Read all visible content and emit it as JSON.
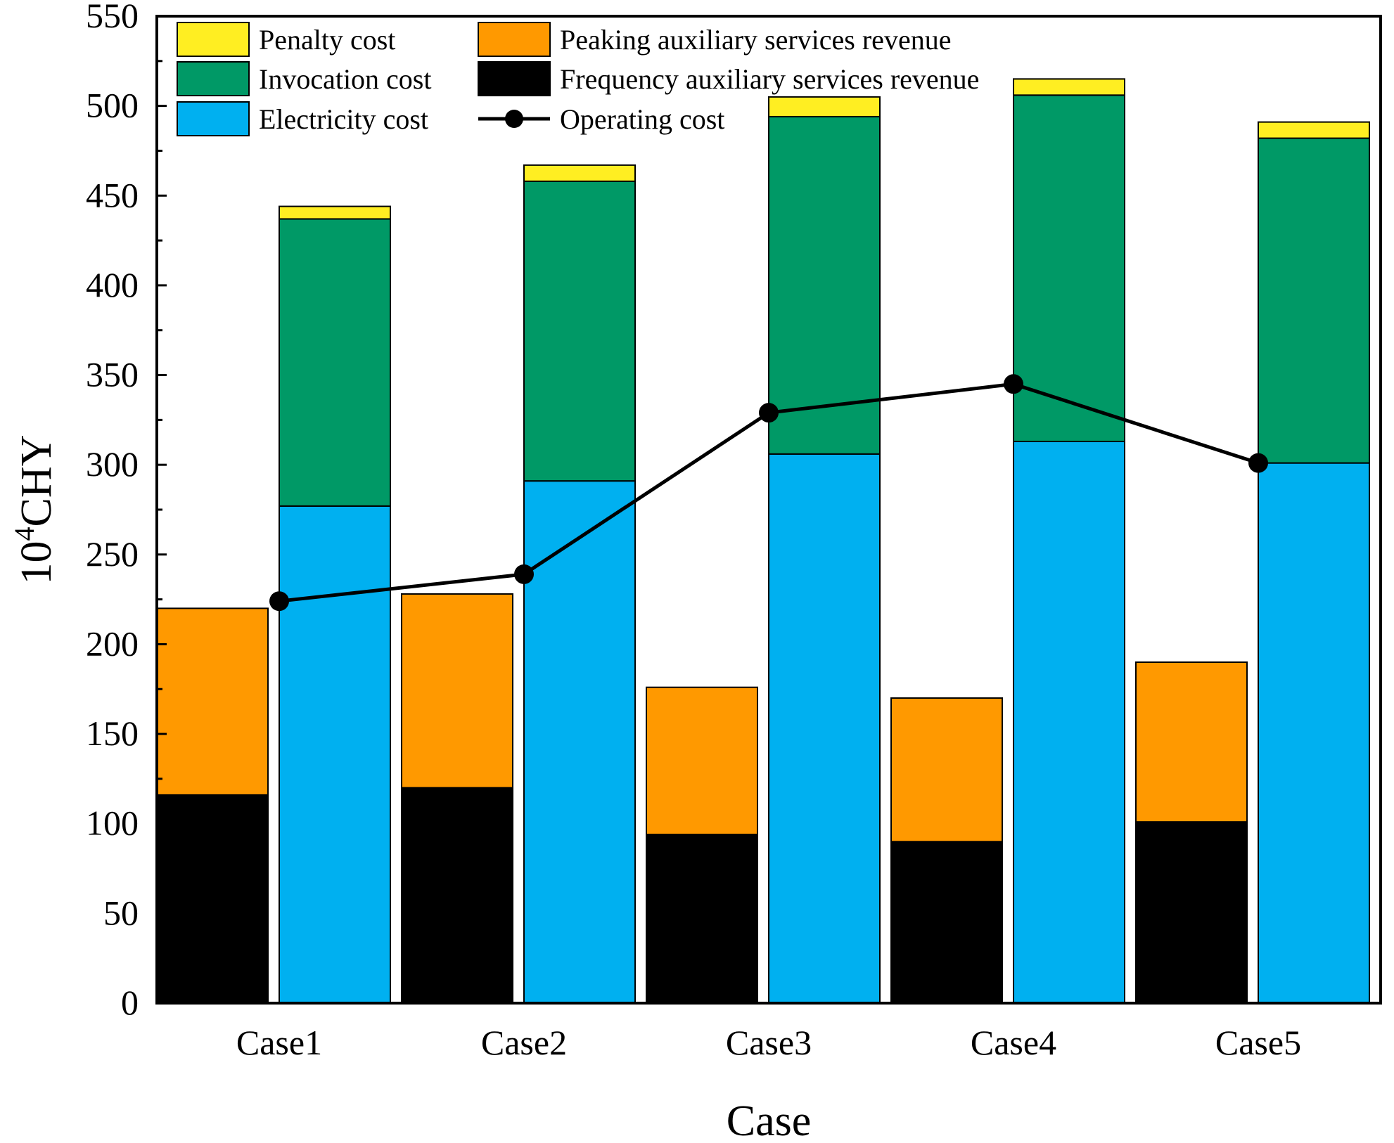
{
  "chart_data": {
    "type": "bar",
    "subtype": "stacked-grouped-with-line",
    "title": "",
    "xlabel": "Case",
    "ylabel": {
      "base": "10",
      "exponent": "4",
      "unit": "CHY"
    },
    "ylim": [
      0,
      550
    ],
    "yticks": [
      "0",
      "50",
      "100",
      "150",
      "200",
      "250",
      "300",
      "350",
      "400",
      "450",
      "500",
      "550"
    ],
    "categories": [
      "Case1",
      "Case2",
      "Case3",
      "Case4",
      "Case5"
    ],
    "revenue_stack": [
      {
        "name": "Frequency auxiliary services revenue",
        "color": "#000000",
        "values": [
          116,
          120,
          94,
          90,
          101
        ]
      },
      {
        "name": "Peaking auxiliary services revenue",
        "color": "#FF9900",
        "values": [
          104,
          108,
          82,
          80,
          89
        ]
      }
    ],
    "cost_stack": [
      {
        "name": "Electricity cost",
        "color": "#00B0F0",
        "values": [
          277,
          291,
          306,
          313,
          301
        ]
      },
      {
        "name": "Invocation cost",
        "color": "#009966",
        "values": [
          160,
          167,
          188,
          193,
          181
        ]
      },
      {
        "name": "Penalty cost",
        "color": "#FFEE22",
        "values": [
          7,
          9,
          11,
          9,
          9
        ]
      }
    ],
    "line": {
      "name": "Operating cost",
      "color": "#000000",
      "values": [
        224,
        239,
        329,
        345,
        301
      ]
    },
    "legend": {
      "placement": "top-left",
      "entries": [
        {
          "label": "Penalty cost",
          "kind": "box",
          "color": "#FFEE22"
        },
        {
          "label": "Invocation cost",
          "kind": "box",
          "color": "#009966"
        },
        {
          "label": "Electricity cost",
          "kind": "box",
          "color": "#00B0F0"
        },
        {
          "label": "Peaking auxiliary services revenue",
          "kind": "box",
          "color": "#FF9900"
        },
        {
          "label": "Frequency auxiliary services revenue",
          "kind": "box",
          "color": "#000000"
        },
        {
          "label": "Operating cost",
          "kind": "line",
          "color": "#000000"
        }
      ]
    }
  }
}
